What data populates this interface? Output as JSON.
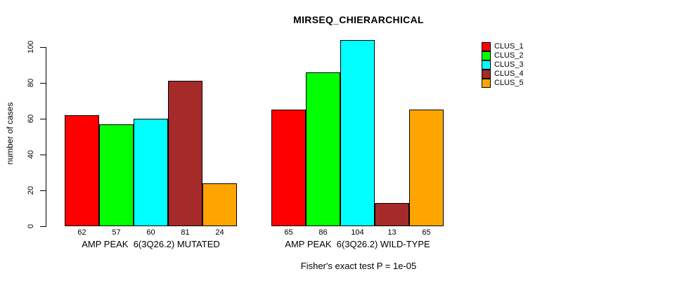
{
  "title": "MIRSEQ_CHIERARCHICAL",
  "chart_data": {
    "type": "bar",
    "title": "MIRSEQ_CHIERARCHICAL",
    "xlabel": "",
    "ylabel": "number of cases",
    "ylim": [
      0,
      110
    ],
    "yticks": [
      0,
      20,
      40,
      60,
      80,
      100
    ],
    "grid": false,
    "legend_position": "right",
    "series": [
      {
        "name": "CLUS_1",
        "color": "#FF0000"
      },
      {
        "name": "CLUS_2",
        "color": "#00FF00"
      },
      {
        "name": "CLUS_3",
        "color": "#00FFFF"
      },
      {
        "name": "CLUS_4",
        "color": "#A52A2A"
      },
      {
        "name": "CLUS_5",
        "color": "#FFA500"
      }
    ],
    "groups": [
      {
        "label": "AMP PEAK  6(3Q26.2) MUTATED",
        "values": [
          62,
          57,
          60,
          81,
          24
        ]
      },
      {
        "label": "AMP PEAK  6(3Q26.2) WILD-TYPE",
        "values": [
          65,
          86,
          104,
          13,
          65
        ]
      }
    ],
    "bar_value_labels_shown": true,
    "annotation": "Fisher's exact test P = 1e-05"
  }
}
